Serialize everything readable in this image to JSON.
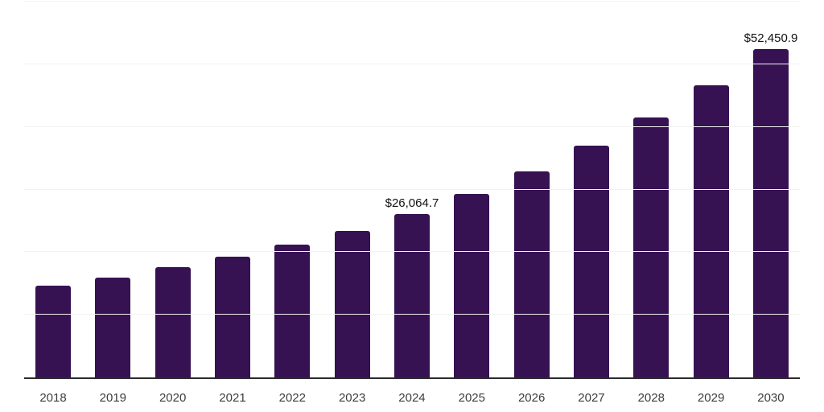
{
  "chart_data": {
    "type": "bar",
    "title": "",
    "categories": [
      "2018",
      "2019",
      "2020",
      "2021",
      "2022",
      "2023",
      "2024",
      "2025",
      "2026",
      "2027",
      "2028",
      "2029",
      "2030"
    ],
    "values": [
      14650,
      15950,
      17600,
      19300,
      21200,
      23400,
      26064.7,
      29300,
      32900,
      37000,
      41500,
      46650,
      52450.9
    ],
    "data_labels": {
      "2024": "$26,064.7",
      "2030": "$52,450.9"
    },
    "ylim": [
      0,
      60000
    ],
    "grid_step": 10000,
    "grid": true,
    "legend_position": "none",
    "colors": {
      "bar": "#361252",
      "axis_line": "#2b2b2b",
      "gridline": "#f2f2f2",
      "data_label": "#111111",
      "tick_label": "#3d3d3d"
    }
  }
}
